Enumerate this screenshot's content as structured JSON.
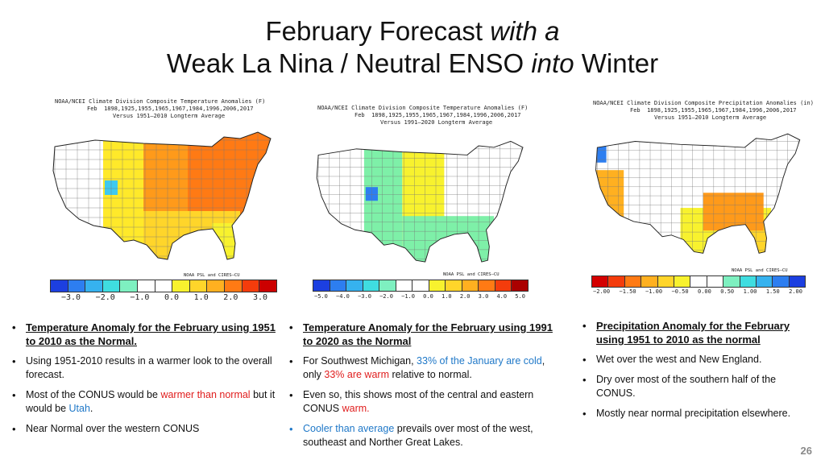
{
  "slide": {
    "title_line1_a": "February Forecast ",
    "title_line1_b": "with a",
    "title_line2_a": "Weak La Nina / Neutral ENSO ",
    "title_line2_b": "into",
    "title_line2_c": " Winter",
    "page_number": "26"
  },
  "maps": [
    {
      "header1": "NOAA/NCEI Climate Division Composite Temperature Anomalies (F)",
      "header2": "Feb  1898,1925,1955,1965,1967,1984,1996,2006,2017",
      "header3": "Versus 1951–2010 Longterm Average",
      "credit": "NOAA PSL and CIRES–CU",
      "ticks": [
        "−3.0",
        "−2.0",
        "−1.0",
        "0.0",
        "1.0",
        "2.0",
        "3.0"
      ],
      "scale_colors": [
        "#1c3fe0",
        "#2d7ef0",
        "#36b2ef",
        "#3fdde0",
        "#7ef0c0",
        "#ffffff",
        "#ffffff",
        "#f8f22e",
        "#ffd52a",
        "#ffb020",
        "#ff7a14",
        "#f43c0c",
        "#cc0000"
      ],
      "region_colors": {
        "west": "#ffffff",
        "mountain": "#ffe92a",
        "plains": "#ff9a1a",
        "east": "#ff7a14",
        "south": "#ffd52a",
        "florida": "#f8f22e",
        "utah": "#3fc9ef"
      }
    },
    {
      "header1": "NOAA/NCEI Climate Division Composite Temperature Anomalies (F)",
      "header2": "Feb  1898,1925,1955,1965,1967,1984,1996,2006,2017",
      "header3": "Versus 1991–2020 Longterm Average",
      "credit": "NOAA PSL and CIRES–CU",
      "ticks": [
        "−5.0",
        "−4.0",
        "−3.0",
        "−2.0",
        "−1.0",
        "0.0",
        "1.0",
        "2.0",
        "3.0",
        "4.0",
        "5.0"
      ],
      "scale_colors": [
        "#1c3fe0",
        "#2d7ef0",
        "#36b2ef",
        "#3fdde0",
        "#7ef0c0",
        "#ffffff",
        "#ffffff",
        "#f8f22e",
        "#ffd52a",
        "#ffb020",
        "#ff7a14",
        "#f43c0c",
        "#aa0000"
      ],
      "region_colors": {
        "west": "#ffffff",
        "mountain": "#7ef0a8",
        "plains": "#f8f22e",
        "east": "#ffffff",
        "south": "#7ef0a8",
        "florida": "#7ef0a8",
        "utah": "#2d7ef0"
      }
    },
    {
      "header1": "NOAA/NCEI Climate Division Composite Precipitation Anomalies (in)",
      "header2": "Feb  1898,1925,1955,1965,1967,1984,1996,2006,2017",
      "header3": "Versus 1951–2010 Longterm Average",
      "credit": "NOAA PSL and CIRES–CU",
      "ticks": [
        "−2.00",
        "−1.50",
        "−1.00",
        "−0.50",
        "0.00",
        "0.50",
        "1.00",
        "1.50",
        "2.00"
      ],
      "scale_colors": [
        "#d40000",
        "#f43c0c",
        "#ff7a14",
        "#ffb020",
        "#ffd52a",
        "#f8f22e",
        "#ffffff",
        "#ffffff",
        "#7ef0c0",
        "#3fdde0",
        "#36b2ef",
        "#2d7ef0",
        "#1c3fe0"
      ],
      "region_colors": {
        "west": "#ffffff",
        "mountain": "#ffffff",
        "plains": "#ffffff",
        "east": "#ffffff",
        "south": "#f8f22e",
        "florida": "#ffd52a",
        "utah": "#ffffff",
        "southeast": "#ff9a1a",
        "california": "#ffb020",
        "northwest": "#2d7ef0"
      }
    }
  ],
  "columns": [
    {
      "heading": "Temperature Anomaly for the February using 1951 to 2010 as the Normal.",
      "items": [
        {
          "parts": [
            {
              "t": "Using 1951-2010 results in a warmer look to the overall forecast.",
              "c": ""
            }
          ]
        },
        {
          "parts": [
            {
              "t": "Most of the CONUS would be ",
              "c": ""
            },
            {
              "t": "warmer than normal",
              "c": "red"
            },
            {
              "t": " but it would be ",
              "c": ""
            },
            {
              "t": "Utah",
              "c": "blue"
            },
            {
              "t": ".",
              "c": ""
            }
          ]
        },
        {
          "parts": [
            {
              "t": "Near Normal over the western CONUS",
              "c": ""
            }
          ]
        }
      ]
    },
    {
      "heading": "Temperature Anomaly for the February using 1991 to 2020 as the Normal",
      "items": [
        {
          "parts": [
            {
              "t": "For Southwest Michigan, ",
              "c": ""
            },
            {
              "t": "33% of the January are cold",
              "c": "blue"
            },
            {
              "t": ", only ",
              "c": ""
            },
            {
              "t": "33% are warm",
              "c": "red"
            },
            {
              "t": " relative to normal.",
              "c": ""
            }
          ]
        },
        {
          "parts": [
            {
              "t": "Even so, this shows most of the central and  eastern CONUS ",
              "c": ""
            },
            {
              "t": "warm.",
              "c": "red"
            }
          ]
        },
        {
          "parts": [
            {
              "t": "Cooler than average",
              "c": "blue"
            },
            {
              "t": " prevails over most of the west, southeast and Norther Great Lakes.",
              "c": ""
            }
          ],
          "bullet_color": "blue"
        }
      ]
    },
    {
      "heading": "Precipitation Anomaly for the February using 1951 to 2010 as the normal",
      "items": [
        {
          "parts": [
            {
              "t": "Wet over the west and New England.",
              "c": ""
            }
          ]
        },
        {
          "parts": [
            {
              "t": "Dry over most of the southern half of the CONUS.",
              "c": ""
            }
          ]
        },
        {
          "parts": [
            {
              "t": "Mostly near normal precipitation elsewhere.",
              "c": ""
            }
          ]
        }
      ]
    }
  ]
}
